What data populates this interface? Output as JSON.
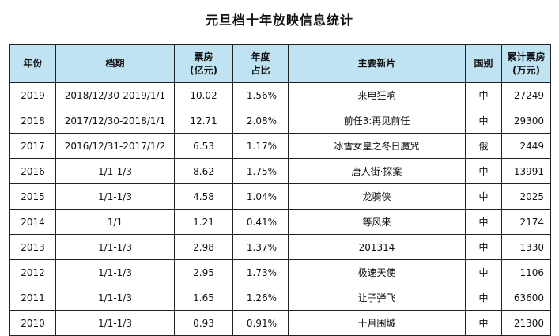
{
  "title": "元旦档十年放映信息统计",
  "headers": {
    "year": "年份",
    "period": "档期",
    "box_office_line1": "票房",
    "box_office_line2": "(亿元)",
    "share_line1": "年度",
    "share_line2": "占比",
    "films": "主要新片",
    "country": "国别",
    "cumulative_line1": "累计票房",
    "cumulative_line2": "(万元)"
  },
  "rows": [
    {
      "year": "2019",
      "period": "2018/12/30-2019/1/1",
      "box": "10.02",
      "share": "1.56%",
      "film": "来电狂响",
      "country": "中",
      "total": "27249"
    },
    {
      "year": "2018",
      "period": "2017/12/30-2018/1/1",
      "box": "12.71",
      "share": "2.08%",
      "film": "前任3:再见前任",
      "country": "中",
      "total": "29300"
    },
    {
      "year": "2017",
      "period": "2016/12/31-2017/1/2",
      "box": "6.53",
      "share": "1.17%",
      "film": "冰雪女皇之冬日魔咒",
      "country": "俄",
      "total": "2449"
    },
    {
      "year": "2016",
      "period": "1/1-1/3",
      "box": "8.62",
      "share": "1.75%",
      "film": "唐人街·探案",
      "country": "中",
      "total": "13991"
    },
    {
      "year": "2015",
      "period": "1/1-1/3",
      "box": "4.58",
      "share": "1.04%",
      "film": "龙骑侠",
      "country": "中",
      "total": "2025"
    },
    {
      "year": "2014",
      "period": "1/1",
      "box": "1.21",
      "share": "0.41%",
      "film": "等风来",
      "country": "中",
      "total": "2174"
    },
    {
      "year": "2013",
      "period": "1/1-1/3",
      "box": "2.98",
      "share": "1.37%",
      "film": "201314",
      "country": "中",
      "total": "1330"
    },
    {
      "year": "2012",
      "period": "1/1-1/3",
      "box": "2.95",
      "share": "1.73%",
      "film": "极速天使",
      "country": "中",
      "total": "1106"
    },
    {
      "year": "2011",
      "period": "1/1-1/3",
      "box": "1.65",
      "share": "1.26%",
      "film": "让子弹飞",
      "country": "中",
      "total": "63600"
    },
    {
      "year": "2010",
      "period": "1/1-1/3",
      "box": "0.93",
      "share": "0.91%",
      "film": "十月围城",
      "country": "中",
      "total": "21300"
    }
  ]
}
